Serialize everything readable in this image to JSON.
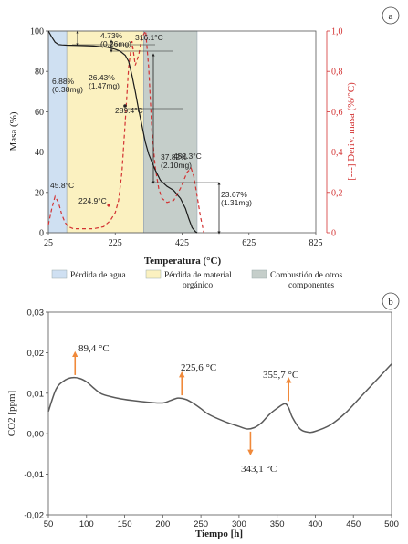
{
  "panel_a": {
    "label": "a",
    "ylabel_left": "Masa (%)",
    "ylabel_right": "[---] Deriv. masa (%/°C)",
    "xlabel": "Temperatura (°C)",
    "annotations": [
      {
        "text": "6.88%",
        "kind": "loss"
      },
      {
        "text": "(0.38mg)",
        "kind": "loss"
      },
      {
        "text": "4.73%",
        "kind": "loss"
      },
      {
        "text": "(0.26mg)",
        "kind": "loss"
      },
      {
        "text": "26.43%",
        "kind": "loss"
      },
      {
        "text": "(1.47mg)",
        "kind": "loss"
      },
      {
        "text": "37.82%",
        "kind": "loss"
      },
      {
        "text": "(2.10mg)",
        "kind": "loss"
      },
      {
        "text": "23.67%",
        "kind": "loss"
      },
      {
        "text": "(1.31mg)",
        "kind": "loss"
      },
      {
        "text": "45.8°C",
        "kind": "peak"
      },
      {
        "text": "224.9°C",
        "kind": "peak"
      },
      {
        "text": "316.1°C",
        "kind": "peak"
      },
      {
        "text": "289.4°C",
        "kind": "peak"
      },
      {
        "text": "452.3°C",
        "kind": "peak"
      }
    ],
    "legend": [
      {
        "label": "Pérdida de agua",
        "color": "#cfe0f2"
      },
      {
        "label": "Pérdida de material orgánico",
        "color": "#fbf1c0"
      },
      {
        "label": "Combustión de otros componentes",
        "color": "#c5ceca"
      }
    ],
    "colors": {
      "mass": "#1a1a1a",
      "deriv": "#d33333",
      "axis_right": "#d33333"
    }
  },
  "panel_b": {
    "label": "b",
    "ylabel": "CO2 [ppm]",
    "xlabel": "Tiempo [h]",
    "annotations": [
      {
        "text": "89,4 °C",
        "direction": "up"
      },
      {
        "text": "225,6 °C",
        "direction": "up"
      },
      {
        "text": "355,7 °C",
        "direction": "up"
      },
      {
        "text": "343,1 °C",
        "direction": "down"
      }
    ],
    "colors": {
      "line": "#5a5a5a",
      "arrow": "#f0893a"
    }
  },
  "chart_data": [
    {
      "type": "line",
      "title": "",
      "xlabel": "Temperatura (°C)",
      "ylabel": "Masa (%)",
      "ylabel_right": "[---] Deriv. masa (%/°C)",
      "xlim": [
        25,
        825
      ],
      "ylim": [
        0,
        100
      ],
      "ylim_right": [
        0,
        1.0
      ],
      "xticks": [
        "25",
        "225",
        "425",
        "625",
        "825"
      ],
      "yticks": [
        "0",
        "20",
        "40",
        "60",
        "80",
        "100"
      ],
      "yticks_right": [
        "0",
        "0,2",
        "0,4",
        "0,6",
        "0,8",
        "1,0"
      ],
      "shaded_regions": [
        {
          "name": "Pérdida de agua",
          "x": [
            25,
            80
          ]
        },
        {
          "name": "Pérdida de material orgánico",
          "x": [
            80,
            310
          ]
        },
        {
          "name": "Combustión de otros componentes",
          "x": [
            310,
            470
          ]
        }
      ],
      "series": [
        {
          "name": "Masa",
          "style": "solid",
          "x": [
            25,
            35,
            45,
            55,
            65,
            80,
            120,
            160,
            200,
            225,
            240,
            255,
            265,
            275,
            285,
            295,
            305,
            315,
            325,
            335,
            345,
            360,
            380,
            400,
            420,
            435,
            445,
            455,
            465,
            470
          ],
          "y": [
            100,
            97,
            94.5,
            93.3,
            93.1,
            93,
            92.8,
            92.6,
            92,
            91,
            90,
            88,
            85,
            78,
            70,
            61,
            53,
            45,
            39,
            35,
            31,
            26,
            23,
            21,
            17,
            12,
            7,
            2.5,
            0.5,
            0
          ]
        },
        {
          "name": "Deriv. masa",
          "style": "dashed",
          "x": [
            25,
            35,
            45,
            55,
            65,
            75,
            85,
            100,
            130,
            160,
            190,
            210,
            225,
            235,
            245,
            255,
            265,
            275,
            285,
            295,
            305,
            316,
            325,
            335,
            345,
            355,
            365,
            380,
            400,
            420,
            440,
            452,
            460,
            470,
            480,
            490
          ],
          "y": [
            0.04,
            0.12,
            0.18,
            0.15,
            0.09,
            0.05,
            0.03,
            0.02,
            0.02,
            0.02,
            0.03,
            0.06,
            0.1,
            0.16,
            0.3,
            0.55,
            0.82,
            0.95,
            0.83,
            0.88,
            0.97,
            1.0,
            0.82,
            0.5,
            0.32,
            0.22,
            0.17,
            0.15,
            0.16,
            0.22,
            0.3,
            0.32,
            0.28,
            0.18,
            0.08,
            0.0
          ]
        }
      ],
      "legend_placement": "bottom"
    },
    {
      "type": "line",
      "title": "",
      "xlabel": "Tiempo [h]",
      "ylabel": "CO2 [ppm]",
      "xlim": [
        50,
        500
      ],
      "ylim": [
        -0.02,
        0.03
      ],
      "xticks": [
        "50",
        "100",
        "150",
        "200",
        "250",
        "300",
        "350",
        "400",
        "450",
        "500"
      ],
      "yticks": [
        "-0,02",
        "-0,01",
        "0,00",
        "0,01",
        "0,02",
        "0,03"
      ],
      "grid": false,
      "series": [
        {
          "name": "",
          "x": [
            50,
            60,
            70,
            80,
            90,
            100,
            110,
            120,
            140,
            160,
            180,
            200,
            210,
            220,
            230,
            240,
            250,
            260,
            280,
            300,
            310,
            320,
            330,
            340,
            350,
            360,
            365,
            370,
            380,
            390,
            400,
            420,
            440,
            460,
            480,
            500
          ],
          "y": [
            0.0055,
            0.011,
            0.013,
            0.0138,
            0.0137,
            0.0128,
            0.0112,
            0.0098,
            0.0088,
            0.0082,
            0.0078,
            0.0076,
            0.0082,
            0.0088,
            0.0085,
            0.0075,
            0.0062,
            0.0048,
            0.0031,
            0.0018,
            0.0012,
            0.0015,
            0.0028,
            0.0048,
            0.0063,
            0.0074,
            0.0064,
            0.004,
            0.0012,
            0.0004,
            0.0006,
            0.0022,
            0.0052,
            0.0092,
            0.0132,
            0.0172
          ]
        }
      ],
      "peaks": [
        {
          "label": "89,4 °C",
          "x": 85,
          "y": 0.0138,
          "direction": "up"
        },
        {
          "label": "225,6 °C",
          "x": 225,
          "y": 0.0088,
          "direction": "up"
        },
        {
          "label": "343,1 °C",
          "x": 315,
          "y": 0.0012,
          "direction": "down"
        },
        {
          "label": "355,7 °C",
          "x": 365,
          "y": 0.0074,
          "direction": "up"
        }
      ]
    }
  ]
}
